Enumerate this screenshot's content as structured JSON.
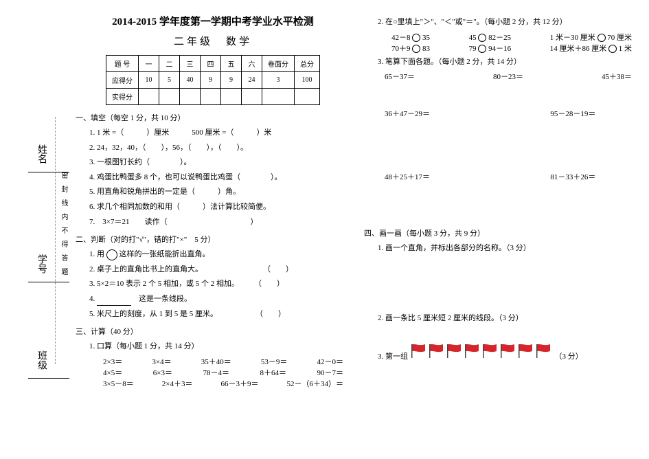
{
  "margin": {
    "name_label": "姓名",
    "id_label": "学号",
    "class_label": "班级",
    "seal_text": "密封线内不得答题"
  },
  "titles": {
    "main": "2014-2015 学年度第一学期中考学业水平检测",
    "sub": "二年级　数学"
  },
  "score_table": {
    "header": [
      "题 号",
      "一",
      "二",
      "三",
      "四",
      "五",
      "六",
      "卷面分",
      "总分"
    ],
    "row1_label": "应得分",
    "row1": [
      "10",
      "5",
      "40",
      "9",
      "9",
      "24",
      "3",
      "100"
    ],
    "row2_label": "实得分"
  },
  "s1": {
    "head": "一、填空（每空 1 分，共 10 分）",
    "i1a": "1. 1 米 =（",
    "i1b": "）厘米",
    "i1c": "500 厘米 =（",
    "i1d": "）米",
    "i2a": "2. 24，32，40，（",
    "i2b": "），56，（",
    "i2c": "），（",
    "i2d": "）。",
    "i3": "3. 一根图钉长约（　　　　）。",
    "i4": "4. 鸡蛋比鸭蛋多 8 个，也可以说鸭蛋比鸡蛋（　　　　）。",
    "i5": "5. 用直角和锐角拼出的一定是（　　　）角。",
    "i6": "6. 求几个相同加数的和用（　　　）法计算比较简便。",
    "i7a": "7.　3×7＝21　　读作（",
    "i7b": "）"
  },
  "s2": {
    "head": "二、判断（对的打\"√\"，错的打\"×\"　5 分）",
    "i1a": "1. 用",
    "i1b": "这样的一张纸能折出直角。",
    "i2": "2. 桌子上的直角比书上的直角大。",
    "i3": "3. 5×2＝10 表示 2 个 5 相加，或 5 个 2 相加。",
    "i4a": "4. ",
    "i4b": "这是一条线段。",
    "i5": "5. 米尺上的刻度，从 1 到 5 是 5 厘米。",
    "paren": "（　　）"
  },
  "s3": {
    "head": "三、计算（40 分）",
    "p1head": "1. 口算（每小题 1 分，共 14 分）",
    "r1": [
      "2×3＝",
      "3×4＝",
      "35＋40＝",
      "53－9＝",
      "42－0＝"
    ],
    "r2": [
      "4×5＝",
      "6×3＝",
      "78－4＝",
      "8＋64＝",
      "90－7＝"
    ],
    "r3": [
      "3×5－8＝",
      "2×4＋3＝",
      "66－3＋9＝",
      "52－（6＋34）＝"
    ],
    "p2head": "2. 在○里填上\"＞\"、\"＜\"或\"＝\"。（每小题 2 分，共 12 分）",
    "q2r1": [
      "42－8",
      "35",
      "45",
      "82－25",
      "1 米－30 厘米",
      "70 厘米"
    ],
    "q2r2": [
      "70＋9",
      "83",
      "79",
      "94－16",
      "14 厘米＋86 厘米",
      "1 米"
    ],
    "p3head": "3. 笔算下面各题。（每小题 2 分，共 14 分）",
    "q3r1": [
      "65－37＝",
      "80－23＝",
      "45＋38＝"
    ],
    "q3r2": [
      "36＋47－29＝",
      "95－28－19＝"
    ],
    "q3r3": [
      "48＋25＋17＝",
      "81－33＋26＝"
    ]
  },
  "s4": {
    "head": "四、画一画（每小题 3 分，共 9 分）",
    "i1": "1. 画一个直角，并标出各部分的名称。（3 分）",
    "i2": "2. 画一条比 5 厘米短 2 厘米的线段。（3 分）",
    "i3a": "3. 第一组",
    "i3b": "（3 分）"
  },
  "flag_color": "#d7262b"
}
